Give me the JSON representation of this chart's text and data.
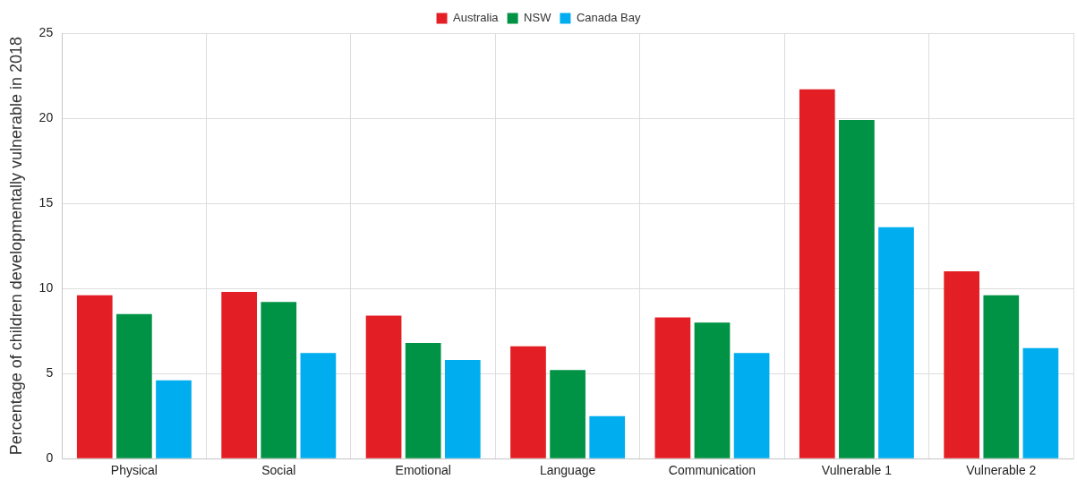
{
  "chart_data": {
    "type": "bar",
    "ylabel": "Percentage of children developmentally vulnerable in 2018",
    "categories": [
      "Physical",
      "Social",
      "Emotional",
      "Language",
      "Communication",
      "Vulnerable 1",
      "Vulnerable 2"
    ],
    "series": [
      {
        "name": "Australia",
        "color": "#e31e24",
        "values": [
          9.6,
          9.8,
          8.4,
          6.6,
          8.3,
          21.7,
          11.0
        ]
      },
      {
        "name": "NSW",
        "color": "#009245",
        "values": [
          8.5,
          9.2,
          6.8,
          5.2,
          8.0,
          19.9,
          9.6
        ]
      },
      {
        "name": "Canada Bay",
        "color": "#00aeef",
        "values": [
          4.6,
          6.2,
          5.8,
          2.5,
          6.2,
          13.6,
          6.5
        ]
      }
    ],
    "ylim": [
      0,
      25
    ],
    "yticks": [
      0,
      5,
      10,
      15,
      20,
      25
    ],
    "grid": true,
    "legend": "top"
  }
}
